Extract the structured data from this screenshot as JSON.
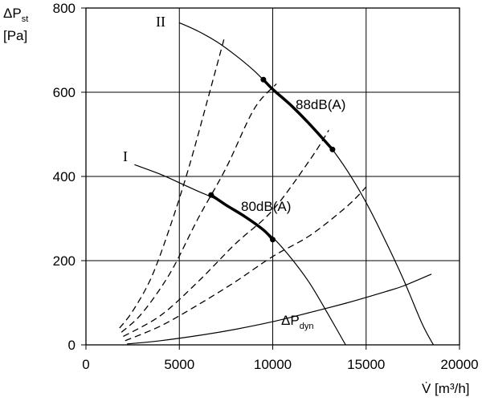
{
  "chart_data": {
    "type": "line",
    "ylabel_main": "ΔP",
    "ylabel_sub": "st",
    "ylabel_unit": "[Pa]",
    "xlabel": "V̇ [m³/h]",
    "xlim": [
      0,
      20000
    ],
    "ylim": [
      0,
      800
    ],
    "grid": true,
    "x_ticks": [
      0,
      5000,
      10000,
      15000,
      20000
    ],
    "y_ticks": [
      0,
      200,
      400,
      600,
      800
    ],
    "x_tick_labels": [
      "0",
      "5000",
      "10000",
      "15000",
      "20000"
    ],
    "y_tick_labels": [
      "0",
      "200",
      "400",
      "600",
      "800"
    ],
    "series": [
      {
        "name": "I",
        "style": "solid",
        "x": [
          2600,
          4000,
          5000,
          6000,
          7000,
          8000,
          9000,
          10000,
          11000,
          12000,
          13000,
          13900
        ],
        "y": [
          428,
          405,
          385,
          365,
          345,
          317,
          290,
          255,
          205,
          145,
          70,
          0
        ]
      },
      {
        "name": "II",
        "style": "solid",
        "x": [
          5000,
          6000,
          7000,
          8000,
          9000,
          10000,
          11000,
          12000,
          13000,
          14000,
          15000,
          16000,
          17000,
          18000,
          18600
        ],
        "y": [
          765,
          745,
          720,
          688,
          651,
          607,
          568,
          523,
          475,
          413,
          338,
          250,
          155,
          50,
          0
        ]
      },
      {
        "name": "ΔP dyn",
        "label_main": "ΔP",
        "label_sub": "dyn",
        "style": "solid",
        "x": [
          2200,
          4000,
          6000,
          8000,
          10000,
          12000,
          14000,
          16000,
          17000,
          18500
        ],
        "y": [
          2,
          10,
          22,
          37,
          55,
          77,
          100,
          126,
          140,
          168
        ]
      },
      {
        "name": "88dB(A)",
        "style": "bold",
        "x": [
          9500,
          10000,
          11000,
          12000,
          13200
        ],
        "y": [
          630,
          607,
          568,
          523,
          464
        ],
        "endpoints": [
          [
            9500,
            630
          ],
          [
            13200,
            464
          ]
        ]
      },
      {
        "name": "80dB(A)",
        "style": "bold",
        "x": [
          6700,
          7500,
          8500,
          9500,
          10000
        ],
        "y": [
          356,
          332,
          305,
          273,
          250
        ],
        "endpoints": [
          [
            6700,
            356
          ],
          [
            10000,
            250
          ]
        ]
      },
      {
        "name": "system-1",
        "style": "dashed",
        "x": [
          1800,
          2500,
          3500,
          4500,
          5500,
          6500,
          7400
        ],
        "y": [
          40,
          80,
          160,
          280,
          420,
          580,
          728
        ]
      },
      {
        "name": "system-2",
        "style": "dashed",
        "x": [
          1900,
          3000,
          4500,
          6000,
          7500,
          9000,
          10200
        ],
        "y": [
          30,
          75,
          170,
          300,
          420,
          560,
          620
        ]
      },
      {
        "name": "system-3",
        "style": "dashed",
        "x": [
          2000,
          4000,
          6000,
          8000,
          10000,
          12000,
          13000
        ],
        "y": [
          20,
          70,
          150,
          240,
          320,
          440,
          510
        ]
      },
      {
        "name": "system-4",
        "style": "dashed",
        "x": [
          2100,
          4000,
          6000,
          8000,
          10000,
          12000,
          14000,
          15000
        ],
        "y": [
          10,
          45,
          95,
          150,
          210,
          260,
          330,
          375
        ]
      }
    ],
    "labels": {
      "curve_I": "I",
      "curve_II": "II",
      "noise_88": "88dB(A)",
      "noise_80": "80dB(A)"
    }
  }
}
